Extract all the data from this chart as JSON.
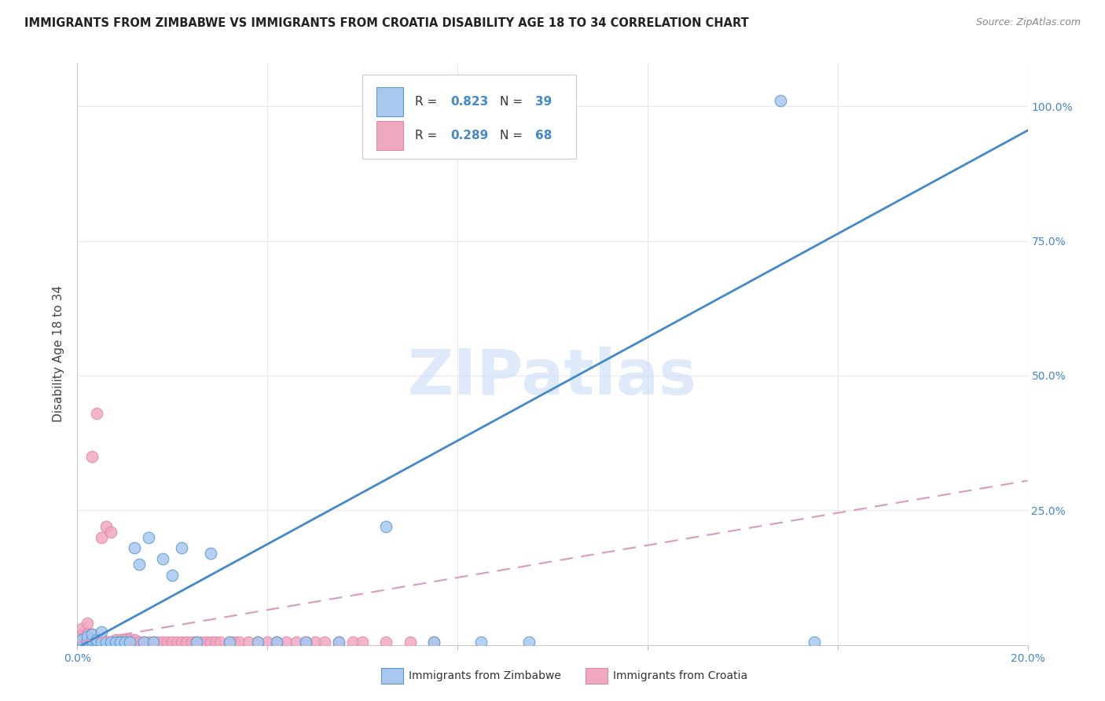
{
  "title": "IMMIGRANTS FROM ZIMBABWE VS IMMIGRANTS FROM CROATIA DISABILITY AGE 18 TO 34 CORRELATION CHART",
  "source": "Source: ZipAtlas.com",
  "ylabel": "Disability Age 18 to 34",
  "xlim": [
    0.0,
    0.2
  ],
  "ylim": [
    0.0,
    1.08
  ],
  "xticks": [
    0.0,
    0.04,
    0.08,
    0.12,
    0.16,
    0.2
  ],
  "yticks": [
    0.0,
    0.25,
    0.5,
    0.75,
    1.0
  ],
  "ytick_labels": [
    "",
    "25.0%",
    "50.0%",
    "75.0%",
    "100.0%"
  ],
  "legend1_r": "0.823",
  "legend1_n": "39",
  "legend2_r": "0.289",
  "legend2_n": "68",
  "zim_color": "#a8c8f0",
  "cro_color": "#f0a8c0",
  "zim_edge_color": "#5599cc",
  "cro_edge_color": "#dd88aa",
  "zim_line_color": "#4488cc",
  "cro_line_color": "#dd99bb",
  "watermark": "ZIPatlas",
  "watermark_color": "#c8ddf5",
  "background_color": "#ffffff",
  "grid_color": "#e8e8ee",
  "zimbabwe_x": [
    0.001,
    0.001,
    0.002,
    0.002,
    0.002,
    0.003,
    0.003,
    0.003,
    0.004,
    0.004,
    0.005,
    0.005,
    0.006,
    0.007,
    0.008,
    0.009,
    0.01,
    0.011,
    0.012,
    0.013,
    0.014,
    0.015,
    0.016,
    0.018,
    0.02,
    0.022,
    0.025,
    0.028,
    0.032,
    0.038,
    0.042,
    0.048,
    0.055,
    0.065,
    0.075,
    0.085,
    0.095,
    0.148,
    0.155
  ],
  "zimbabwe_y": [
    0.005,
    0.01,
    0.005,
    0.008,
    0.015,
    0.005,
    0.01,
    0.02,
    0.005,
    0.01,
    0.005,
    0.025,
    0.005,
    0.005,
    0.005,
    0.005,
    0.005,
    0.005,
    0.18,
    0.15,
    0.005,
    0.2,
    0.005,
    0.16,
    0.13,
    0.18,
    0.005,
    0.17,
    0.005,
    0.005,
    0.005,
    0.005,
    0.005,
    0.22,
    0.005,
    0.005,
    0.005,
    1.01,
    0.005
  ],
  "croatia_x": [
    0.001,
    0.001,
    0.001,
    0.001,
    0.002,
    0.002,
    0.002,
    0.002,
    0.003,
    0.003,
    0.003,
    0.003,
    0.004,
    0.004,
    0.004,
    0.005,
    0.005,
    0.005,
    0.006,
    0.006,
    0.007,
    0.007,
    0.008,
    0.008,
    0.009,
    0.009,
    0.01,
    0.01,
    0.011,
    0.011,
    0.012,
    0.012,
    0.013,
    0.014,
    0.015,
    0.016,
    0.017,
    0.018,
    0.019,
    0.02,
    0.021,
    0.022,
    0.023,
    0.024,
    0.025,
    0.026,
    0.027,
    0.028,
    0.029,
    0.03,
    0.032,
    0.033,
    0.034,
    0.036,
    0.038,
    0.04,
    0.042,
    0.044,
    0.046,
    0.048,
    0.05,
    0.052,
    0.055,
    0.058,
    0.06,
    0.065,
    0.07,
    0.075
  ],
  "croatia_y": [
    0.005,
    0.01,
    0.02,
    0.03,
    0.005,
    0.01,
    0.02,
    0.04,
    0.005,
    0.01,
    0.02,
    0.35,
    0.005,
    0.01,
    0.43,
    0.005,
    0.01,
    0.2,
    0.005,
    0.22,
    0.005,
    0.21,
    0.005,
    0.01,
    0.005,
    0.01,
    0.005,
    0.01,
    0.005,
    0.01,
    0.005,
    0.01,
    0.005,
    0.005,
    0.005,
    0.005,
    0.005,
    0.005,
    0.005,
    0.005,
    0.005,
    0.005,
    0.005,
    0.005,
    0.005,
    0.005,
    0.005,
    0.005,
    0.005,
    0.005,
    0.005,
    0.005,
    0.005,
    0.005,
    0.005,
    0.005,
    0.005,
    0.005,
    0.005,
    0.005,
    0.005,
    0.005,
    0.005,
    0.005,
    0.005,
    0.005,
    0.005,
    0.005
  ]
}
